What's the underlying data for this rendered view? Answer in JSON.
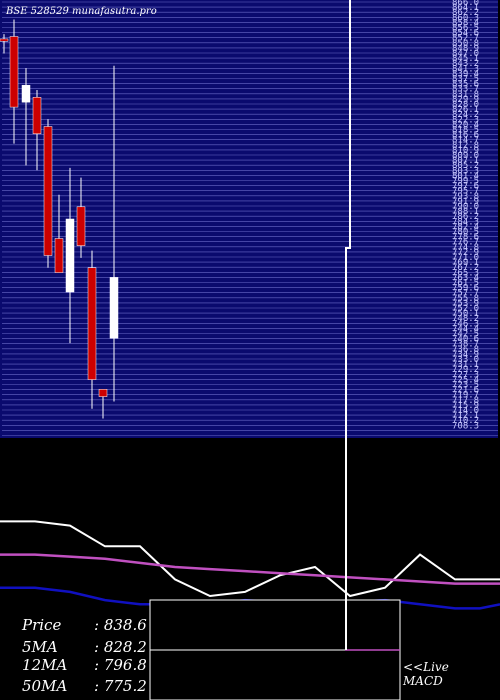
{
  "header": {
    "exchange_code": "BSE 528529",
    "site": "munafasutra.pro"
  },
  "stats": [
    {
      "label": "Price",
      "value": ": 838.6"
    },
    {
      "label": "5MA",
      "value": ": 828.2"
    },
    {
      "label": "12MA",
      "value": ": 796.8"
    },
    {
      "label": "50MA",
      "value": ": 775.2"
    }
  ],
  "panel_links": {
    "live": "<<Live",
    "macd": "MACD"
  },
  "colors": {
    "background": "#000000",
    "price_panel": "#0a0a6e",
    "gridline": "#7a7ad8",
    "bull": "#ffffff",
    "bear": "#cc0000",
    "price_line": "#ffffff",
    "ma_long": "#c050c0",
    "ma_mid": "#1010c0"
  },
  "chart_data": [
    {
      "type": "candlestick",
      "title": "BSE 528529 munafasutra.pro",
      "series": [
        {
          "name": "price",
          "candles": [
            {
              "open": 864,
              "high": 866,
              "low": 858,
              "close": 863
            },
            {
              "open": 865,
              "high": 872,
              "low": 821,
              "close": 836
            },
            {
              "open": 838,
              "high": 852,
              "low": 812,
              "close": 845
            },
            {
              "open": 840,
              "high": 843,
              "low": 810,
              "close": 825
            },
            {
              "open": 828,
              "high": 831,
              "low": 770,
              "close": 775
            },
            {
              "open": 782,
              "high": 800,
              "low": 768,
              "close": 768
            },
            {
              "open": 760,
              "high": 811,
              "low": 739,
              "close": 790
            },
            {
              "open": 795,
              "high": 807,
              "low": 774,
              "close": 779
            },
            {
              "open": 770,
              "high": 777,
              "low": 712,
              "close": 724
            },
            {
              "open": 720,
              "high": 719,
              "low": 708,
              "close": 717
            },
            {
              "open": 741,
              "high": 853,
              "low": 715,
              "close": 766
            }
          ]
        }
      ]
    },
    {
      "type": "line",
      "series": [
        {
          "name": "price",
          "values": [
            840,
            840,
            839,
            834,
            834,
            826,
            822,
            823,
            827,
            829,
            822,
            824,
            832,
            826,
            826,
            826
          ]
        },
        {
          "name": "ma_long",
          "values": [
            832,
            832,
            831.5,
            831,
            830,
            829,
            828.5,
            828,
            827.5,
            827,
            826.5,
            826,
            825.5,
            825,
            825,
            825
          ]
        },
        {
          "name": "ma_mid",
          "values": [
            824,
            824,
            823,
            821,
            820,
            820,
            820,
            821,
            820.5,
            820,
            820.5,
            821,
            820,
            819,
            819,
            820
          ]
        }
      ]
    }
  ]
}
